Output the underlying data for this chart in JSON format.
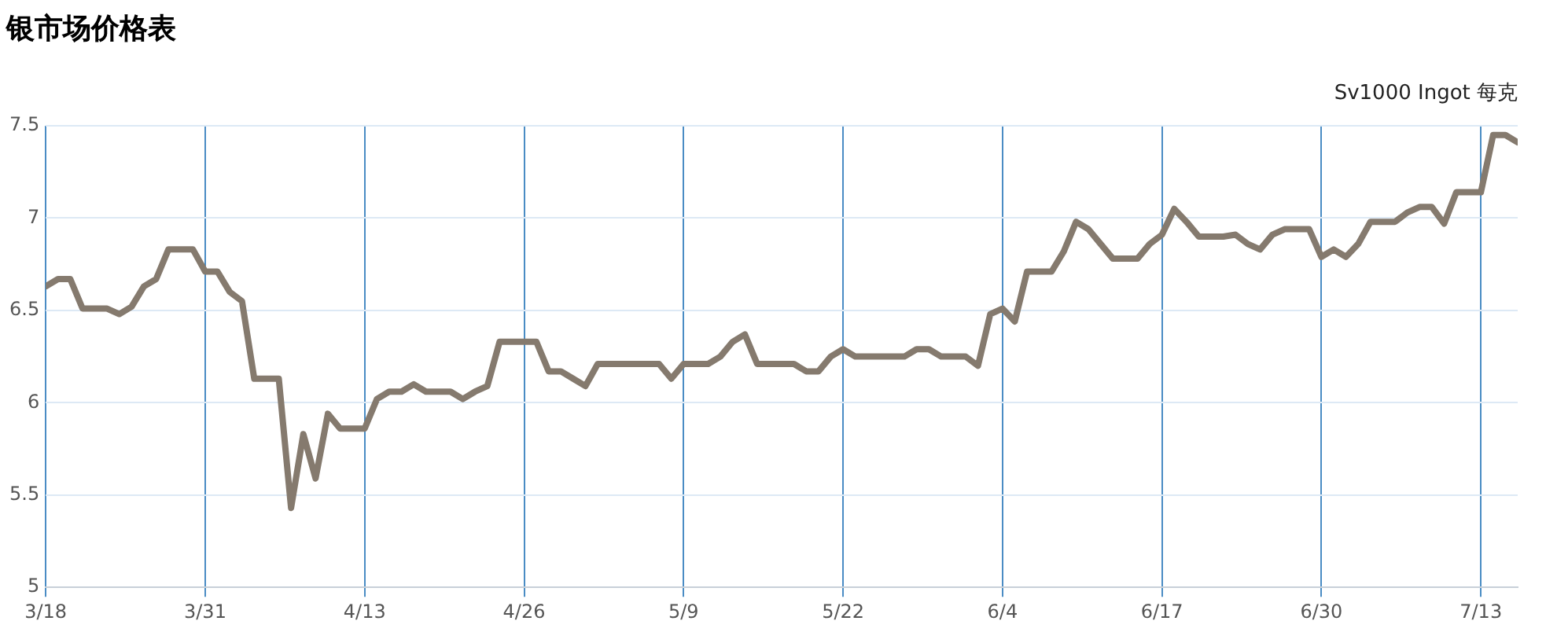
{
  "chart_data": {
    "type": "line",
    "title": "银市场价格表",
    "subtitle": "Sv1000 Ingot 每克",
    "x": [
      "--03-18",
      "--03-19",
      "--03-20",
      "--03-21",
      "--03-22",
      "--03-23",
      "--03-24",
      "--03-25",
      "--03-26",
      "--03-27",
      "--03-28",
      "--03-29",
      "--03-30",
      "--03-31",
      "--04-01",
      "--04-02",
      "--04-03",
      "--04-04",
      "--04-05",
      "--04-06",
      "--04-07",
      "--04-08",
      "--04-09",
      "--04-10",
      "--04-11",
      "--04-12",
      "--04-13",
      "--04-14",
      "--04-15",
      "--04-16",
      "--04-17",
      "--04-18",
      "--04-19",
      "--04-20",
      "--04-21",
      "--04-22",
      "--04-23",
      "--04-24",
      "--04-25",
      "--04-26",
      "--04-27",
      "--04-28",
      "--04-29",
      "--04-30",
      "--05-01",
      "--05-02",
      "--05-03",
      "--05-04",
      "--05-05",
      "--05-06",
      "--05-07",
      "--05-08",
      "--05-09",
      "--05-10",
      "--05-11",
      "--05-12",
      "--05-13",
      "--05-14",
      "--05-15",
      "--05-16",
      "--05-17",
      "--05-18",
      "--05-19",
      "--05-20",
      "--05-21",
      "--05-22",
      "--05-23",
      "--05-24",
      "--05-25",
      "--05-26",
      "--05-27",
      "--05-28",
      "--05-29",
      "--05-30",
      "--05-31",
      "--06-01",
      "--06-02",
      "--06-03",
      "--06-04",
      "--06-05",
      "--06-06",
      "--06-07",
      "--06-08",
      "--06-09",
      "--06-10",
      "--06-11",
      "--06-12",
      "--06-13",
      "--06-14",
      "--06-15",
      "--06-16",
      "--06-17",
      "--06-18",
      "--06-19",
      "--06-20",
      "--06-21",
      "--06-22",
      "--06-23",
      "--06-24",
      "--06-25",
      "--06-26",
      "--06-27",
      "--06-28",
      "--06-29",
      "--06-30",
      "--07-01",
      "--07-02",
      "--07-03",
      "--07-04",
      "--07-05",
      "--07-06",
      "--07-07",
      "--07-08",
      "--07-09",
      "--07-10",
      "--07-11",
      "--07-12",
      "--07-13",
      "--07-14",
      "--07-15",
      "--07-16"
    ],
    "series": [
      {
        "color": "#857a6e",
        "values": [
          6.63,
          6.67,
          6.67,
          6.51,
          6.51,
          6.51,
          6.48,
          6.52,
          6.63,
          6.67,
          6.83,
          6.83,
          6.83,
          6.71,
          6.71,
          6.6,
          6.55,
          6.13,
          6.13,
          6.13,
          5.43,
          5.83,
          5.59,
          5.94,
          5.86,
          5.86,
          5.86,
          6.02,
          6.06,
          6.06,
          6.1,
          6.06,
          6.06,
          6.06,
          6.02,
          6.06,
          6.09,
          6.33,
          6.33,
          6.33,
          6.33,
          6.17,
          6.17,
          6.13,
          6.09,
          6.21,
          6.21,
          6.21,
          6.21,
          6.21,
          6.21,
          6.13,
          6.21,
          6.21,
          6.21,
          6.25,
          6.33,
          6.37,
          6.21,
          6.21,
          6.21,
          6.21,
          6.17,
          6.17,
          6.25,
          6.29,
          6.25,
          6.25,
          6.25,
          6.25,
          6.25,
          6.29,
          6.29,
          6.25,
          6.25,
          6.25,
          6.2,
          6.48,
          6.51,
          6.44,
          6.71,
          6.71,
          6.71,
          6.82,
          6.98,
          6.94,
          6.86,
          6.78,
          6.78,
          6.78,
          6.86,
          6.91,
          7.05,
          6.98,
          6.9,
          6.9,
          6.9,
          6.91,
          6.86,
          6.83,
          6.91,
          6.94,
          6.94,
          6.94,
          6.79,
          6.83,
          6.79,
          6.86,
          6.98,
          6.98,
          6.98,
          7.03,
          7.06,
          7.06,
          6.97,
          7.14,
          7.14,
          7.14,
          7.45,
          7.45,
          7.41
        ]
      }
    ],
    "xlim": [
      "--03-18",
      "--07-16"
    ],
    "xticks": [
      {
        "value": "--03-18",
        "label": "3/18"
      },
      {
        "value": "--03-31",
        "label": "3/31"
      },
      {
        "value": "--04-13",
        "label": "4/13"
      },
      {
        "value": "--04-26",
        "label": "4/26"
      },
      {
        "value": "--05-09",
        "label": "5/9"
      },
      {
        "value": "--05-22",
        "label": "5/22"
      },
      {
        "value": "--06-04",
        "label": "6/4"
      },
      {
        "value": "--06-17",
        "label": "6/17"
      },
      {
        "value": "--06-30",
        "label": "6/30"
      },
      {
        "value": "--07-13",
        "label": "7/13"
      }
    ],
    "ylim": [
      5,
      7.5
    ],
    "yticks": [
      5,
      5.5,
      6,
      6.5,
      7,
      7.5
    ],
    "grid": true,
    "legend": false,
    "marker": "none",
    "line_style": "solid"
  }
}
